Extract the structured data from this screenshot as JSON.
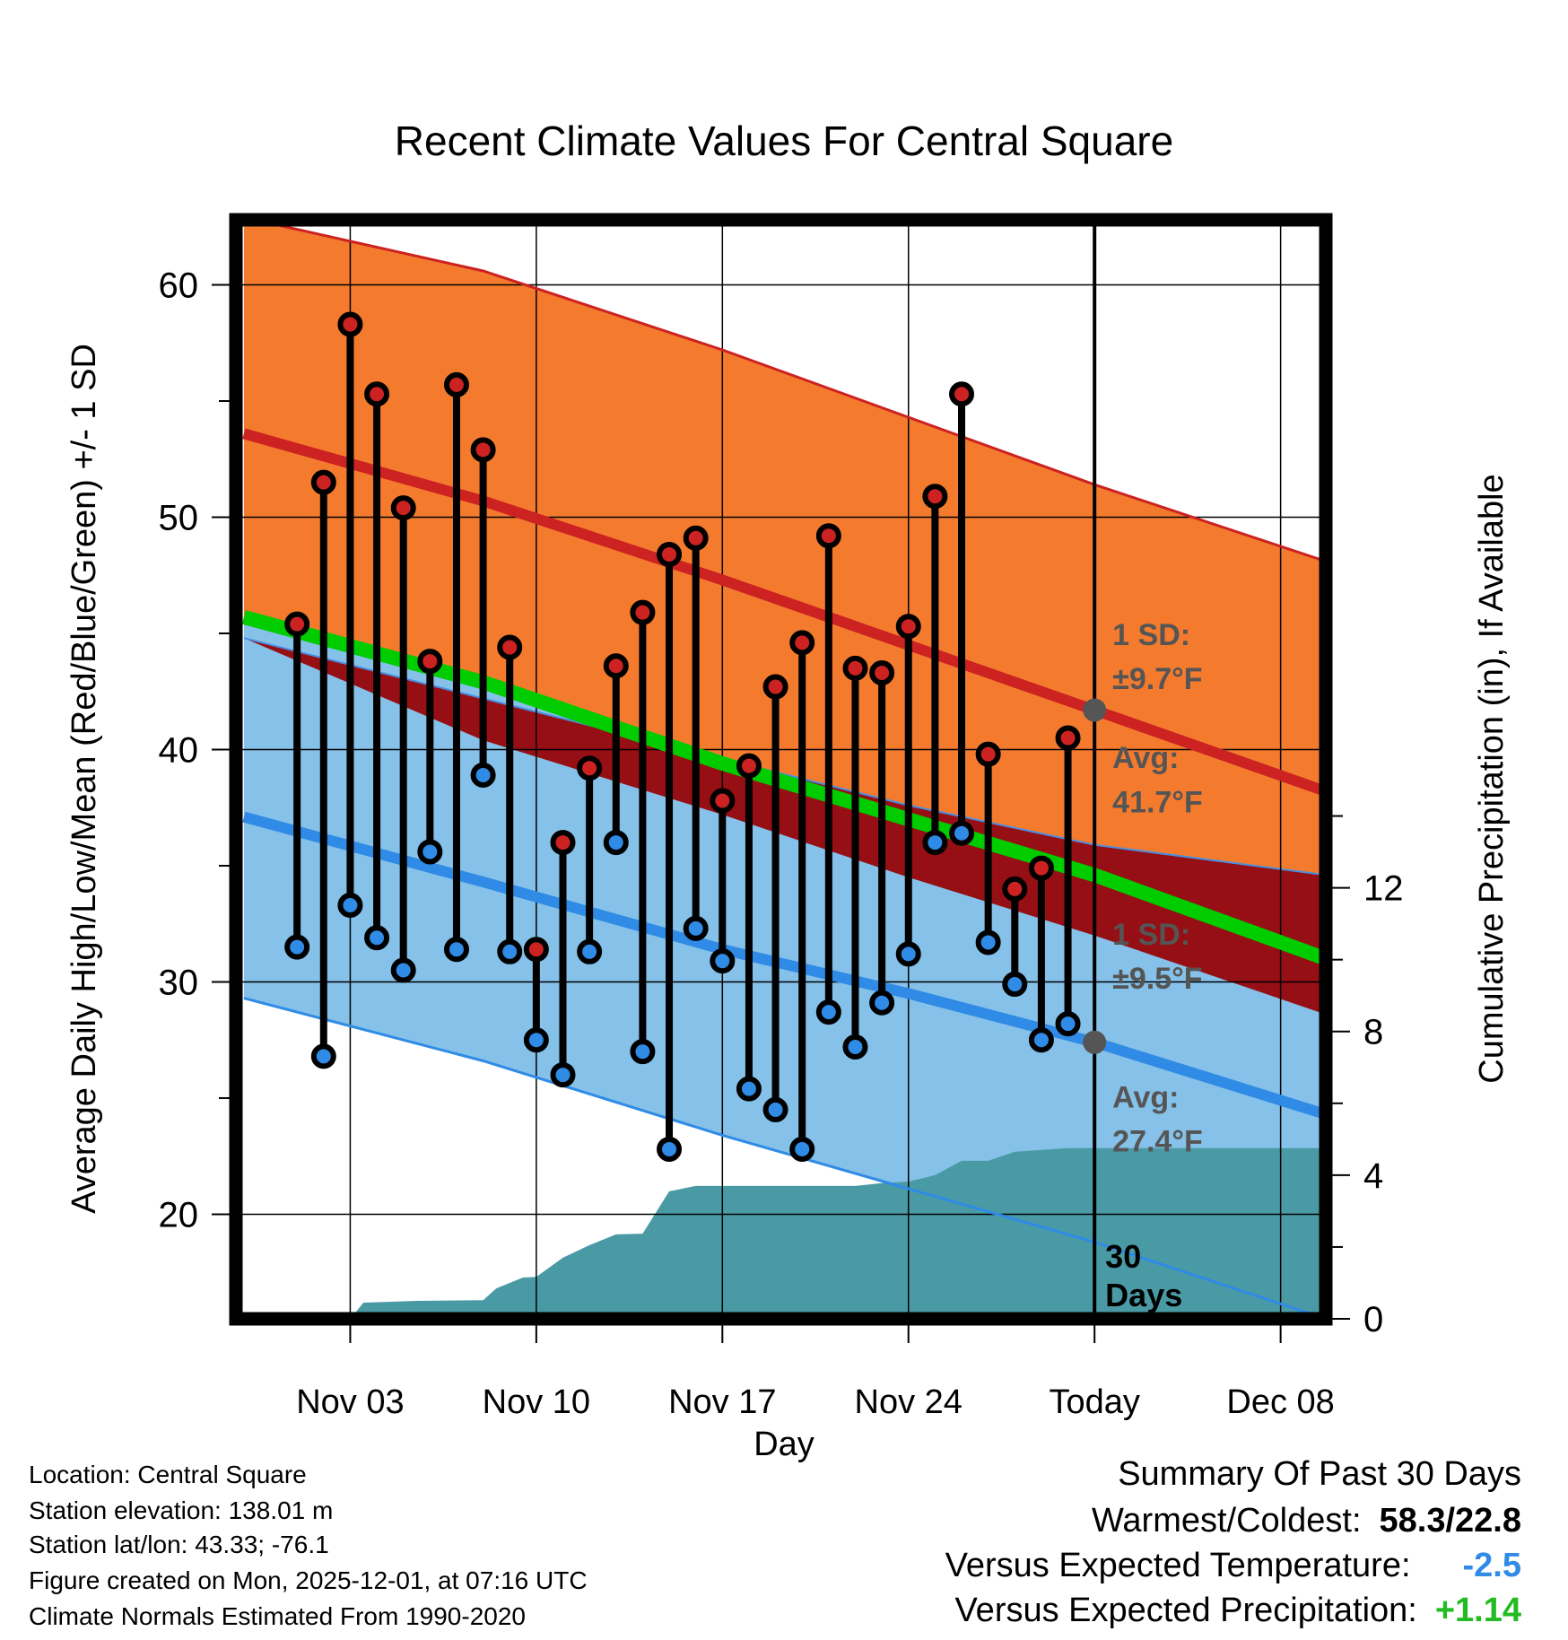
{
  "chart_data": {
    "type": "line",
    "title": "Recent Climate Values For Central Square",
    "xlabel": "Day",
    "ylabel": "Average Daily High/Low/Mean (Red/Blue/Green) +/- 1 SD",
    "y2label": "Cumulative Precipitation (in), If Available",
    "xlim": [
      -2.3,
      38.7
    ],
    "ylim": [
      15.5,
      62.8
    ],
    "y2lim": [
      0,
      30.6
    ],
    "x_ticks": [
      {
        "x": 2,
        "label": "Nov 03"
      },
      {
        "x": 9,
        "label": "Nov 10"
      },
      {
        "x": 16,
        "label": "Nov 17"
      },
      {
        "x": 23,
        "label": "Nov 24"
      },
      {
        "x": 30,
        "label": "Today"
      },
      {
        "x": 37,
        "label": "Dec 08"
      }
    ],
    "y_ticks": [
      20,
      30,
      40,
      50,
      60
    ],
    "y2_ticks": [
      0,
      4,
      8,
      12
    ],
    "normals": {
      "x": [
        -2,
        7,
        16,
        23,
        30,
        38.7
      ],
      "high_plus_sd": [
        62.9,
        60.6,
        57.2,
        54.3,
        51.4,
        48.1
      ],
      "high": [
        53.6,
        50.7,
        47.3,
        44.5,
        41.7,
        38.2
      ],
      "mean": [
        45.7,
        42.9,
        39.4,
        37.0,
        34.6,
        31.0
      ],
      "low": [
        37.1,
        34.3,
        31.4,
        29.5,
        27.4,
        24.3
      ],
      "low_minus_sd": [
        29.3,
        26.6,
        23.4,
        21.1,
        18.8,
        15.5
      ],
      "dark_band_top": [
        44.8,
        42.2,
        39.6,
        37.6,
        35.9,
        34.6
      ],
      "dark_band_bottom": [
        44.8,
        40.4,
        37.2,
        34.5,
        32.0,
        28.6
      ]
    },
    "series": [
      {
        "name": "Daily High",
        "color": "#cc2222",
        "values": [
          45.4,
          51.5,
          58.3,
          55.3,
          50.4,
          43.8,
          55.7,
          52.9,
          44.4,
          31.4,
          36.0,
          39.2,
          43.6,
          45.9,
          48.4,
          49.1,
          37.8,
          39.3,
          42.7,
          44.6,
          49.2,
          43.5,
          43.3,
          45.3,
          50.9,
          55.3,
          39.8,
          34.0,
          34.9,
          40.5
        ]
      },
      {
        "name": "Daily Low",
        "color": "#2f8be6",
        "values": [
          31.5,
          26.8,
          33.3,
          31.9,
          30.5,
          35.6,
          31.4,
          38.9,
          31.3,
          27.5,
          26.0,
          31.3,
          36.0,
          27.0,
          22.8,
          32.3,
          30.9,
          25.4,
          24.5,
          22.8,
          28.7,
          27.2,
          29.1,
          31.2,
          36.0,
          36.4,
          31.7,
          29.9,
          27.5,
          28.2
        ]
      }
    ],
    "days": [
      0,
      1,
      2,
      3,
      4,
      5,
      6,
      7,
      8,
      9,
      10,
      11,
      12,
      13,
      14,
      15,
      16,
      17,
      18,
      19,
      20,
      21,
      22,
      23,
      24,
      25,
      26,
      27,
      28,
      29
    ],
    "precipitation": {
      "x": [
        -2.3,
        2.0,
        2.5,
        4.5,
        7.0,
        7.5,
        8.5,
        9.0,
        10.0,
        11.0,
        12.0,
        13.0,
        14.0,
        15.0,
        16.0,
        17.0,
        18.0,
        19.0,
        20.0,
        21.0,
        22.0,
        23.0,
        24.0,
        25.0,
        26.0,
        27.0,
        28.0,
        29.0,
        30.0,
        38.7
      ],
      "values": [
        0,
        0,
        0.45,
        0.5,
        0.52,
        0.85,
        1.15,
        1.17,
        1.7,
        2.05,
        2.35,
        2.37,
        3.55,
        3.7,
        3.7,
        3.7,
        3.7,
        3.7,
        3.7,
        3.7,
        3.78,
        3.82,
        4.0,
        4.4,
        4.4,
        4.65,
        4.7,
        4.75,
        4.75,
        4.75
      ],
      "color": "#4a9aa5"
    },
    "today": {
      "x": 30,
      "label": "30 Days",
      "high_marker": 41.7,
      "low_marker": 27.4
    },
    "annotations": {
      "high_sd_label": "1 SD:",
      "high_sd_value": "±9.7°F",
      "high_avg_label": "Avg:",
      "high_avg_value": "41.7°F",
      "low_sd_label": "1 SD:",
      "low_sd_value": "±9.5°F",
      "low_avg_label": "Avg:",
      "low_avg_value": "27.4°F"
    },
    "colors": {
      "orange_band": "#f47b2e",
      "high_line": "#cc2222",
      "dark_band": "#960f14",
      "mean_line": "#00cc00",
      "blue_band": "#85c1e8",
      "low_line": "#2f8be6",
      "precip": "#4a9aa5"
    }
  },
  "info": {
    "location": "Location: Central Square",
    "elevation": "Station elevation: 138.01 m",
    "latlon": "Station lat/lon: 43.33; -76.1",
    "created": "Figure created on Mon, 2025-12-01, at 07:16 UTC",
    "normals": "Climate Normals Estimated From 1990-2020"
  },
  "summary": {
    "title": "Summary Of Past 30 Days",
    "warmest_label": "Warmest/Coldest:",
    "warmest_value": "58.3/22.8",
    "temp_label": "Versus Expected Temperature:",
    "temp_value": "-2.5",
    "temp_color": "#2f8be6",
    "precip_label": "Versus Expected Precipitation:",
    "precip_value": "+1.14",
    "precip_color": "#22bb22"
  }
}
